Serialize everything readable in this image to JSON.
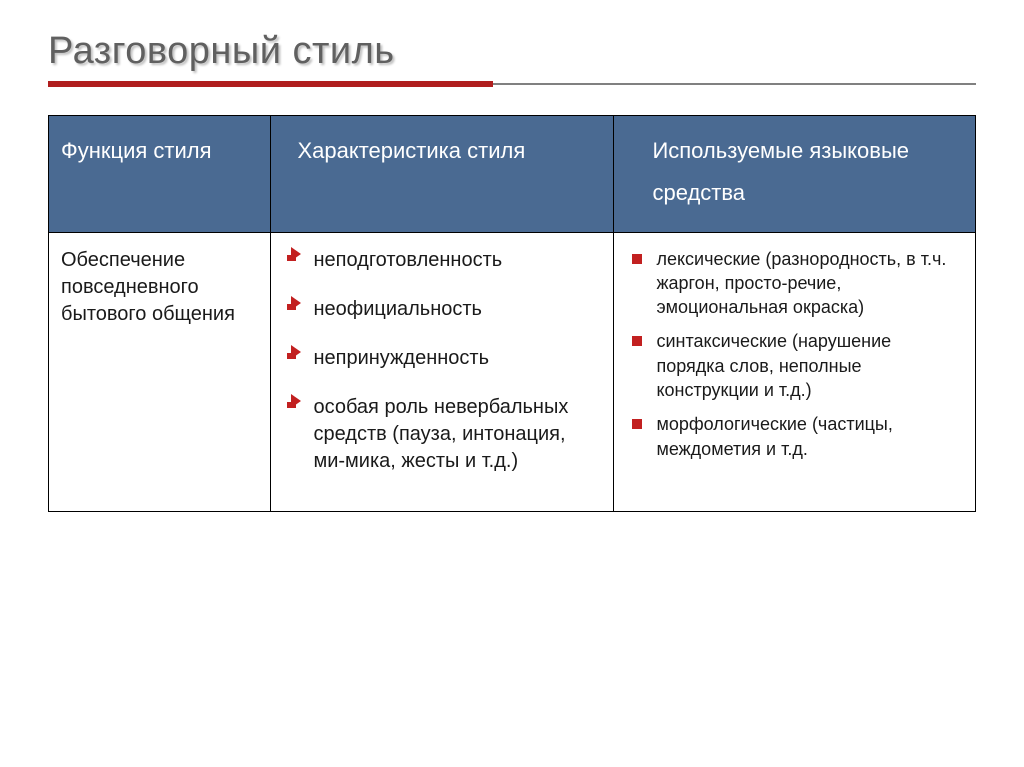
{
  "slide": {
    "title": "Разговорный стиль",
    "accent_color": "#b01e1e",
    "header_bg": "#4a6a92",
    "header_text_color": "#ffffff",
    "body_text_color": "#1a1a1a",
    "title_color": "#606060",
    "border_color": "#000000",
    "bullet_color": "#c22020",
    "background_color": "#ffffff",
    "fontsizes": {
      "title": 38,
      "th": 22,
      "td_main": 22,
      "td_body": 20,
      "td_list3": 18
    }
  },
  "table": {
    "columns": [
      "Функция стиля",
      "Характеристика стиля",
      "Используемые языковые средства"
    ],
    "col_widths_pct": [
      24,
      37,
      39
    ],
    "row": {
      "function": "Обеспечение повседневного бытового общения",
      "characteristics": [
        "неподготовленность",
        "неофициальность",
        "непринужденность",
        "особая роль невербальных средств (пауза, интонация, ми-мика, жесты и т.д.)"
      ],
      "means": [
        "лексические (разнородность, в т.ч. жаргон, просто-речие, эмоциональная окраска)",
        "синтаксические (нарушение порядка слов, неполные конструкции и т.д.)",
        "морфологические (частицы, междометия и т.д."
      ]
    }
  }
}
